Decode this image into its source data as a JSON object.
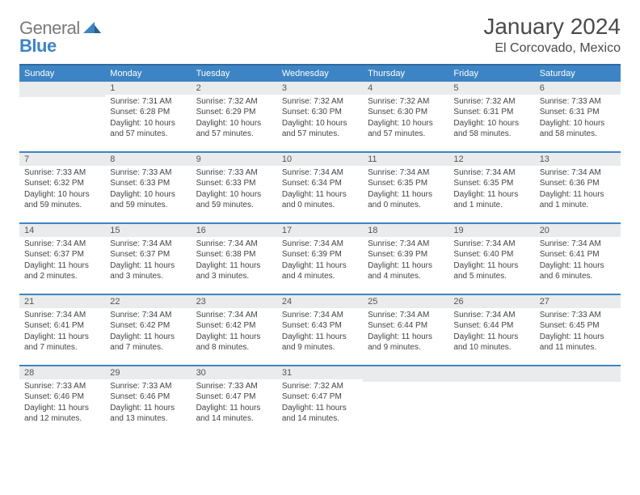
{
  "brand": {
    "a": "General",
    "b": "Blue"
  },
  "title": "January 2024",
  "subtitle": "El Corcovado, Mexico",
  "colors": {
    "headerBg": "#3d84c4",
    "headerRule": "#2f6aa0",
    "dayBg": "#e9ebec"
  },
  "weekdays": [
    "Sunday",
    "Monday",
    "Tuesday",
    "Wednesday",
    "Thursday",
    "Friday",
    "Saturday"
  ],
  "weeks": [
    [
      null,
      {
        "n": "1",
        "sr": "Sunrise: 7:31 AM",
        "ss": "Sunset: 6:28 PM",
        "dl": "Daylight: 10 hours and 57 minutes."
      },
      {
        "n": "2",
        "sr": "Sunrise: 7:32 AM",
        "ss": "Sunset: 6:29 PM",
        "dl": "Daylight: 10 hours and 57 minutes."
      },
      {
        "n": "3",
        "sr": "Sunrise: 7:32 AM",
        "ss": "Sunset: 6:30 PM",
        "dl": "Daylight: 10 hours and 57 minutes."
      },
      {
        "n": "4",
        "sr": "Sunrise: 7:32 AM",
        "ss": "Sunset: 6:30 PM",
        "dl": "Daylight: 10 hours and 57 minutes."
      },
      {
        "n": "5",
        "sr": "Sunrise: 7:32 AM",
        "ss": "Sunset: 6:31 PM",
        "dl": "Daylight: 10 hours and 58 minutes."
      },
      {
        "n": "6",
        "sr": "Sunrise: 7:33 AM",
        "ss": "Sunset: 6:31 PM",
        "dl": "Daylight: 10 hours and 58 minutes."
      }
    ],
    [
      {
        "n": "7",
        "sr": "Sunrise: 7:33 AM",
        "ss": "Sunset: 6:32 PM",
        "dl": "Daylight: 10 hours and 59 minutes."
      },
      {
        "n": "8",
        "sr": "Sunrise: 7:33 AM",
        "ss": "Sunset: 6:33 PM",
        "dl": "Daylight: 10 hours and 59 minutes."
      },
      {
        "n": "9",
        "sr": "Sunrise: 7:33 AM",
        "ss": "Sunset: 6:33 PM",
        "dl": "Daylight: 10 hours and 59 minutes."
      },
      {
        "n": "10",
        "sr": "Sunrise: 7:34 AM",
        "ss": "Sunset: 6:34 PM",
        "dl": "Daylight: 11 hours and 0 minutes."
      },
      {
        "n": "11",
        "sr": "Sunrise: 7:34 AM",
        "ss": "Sunset: 6:35 PM",
        "dl": "Daylight: 11 hours and 0 minutes."
      },
      {
        "n": "12",
        "sr": "Sunrise: 7:34 AM",
        "ss": "Sunset: 6:35 PM",
        "dl": "Daylight: 11 hours and 1 minute."
      },
      {
        "n": "13",
        "sr": "Sunrise: 7:34 AM",
        "ss": "Sunset: 6:36 PM",
        "dl": "Daylight: 11 hours and 1 minute."
      }
    ],
    [
      {
        "n": "14",
        "sr": "Sunrise: 7:34 AM",
        "ss": "Sunset: 6:37 PM",
        "dl": "Daylight: 11 hours and 2 minutes."
      },
      {
        "n": "15",
        "sr": "Sunrise: 7:34 AM",
        "ss": "Sunset: 6:37 PM",
        "dl": "Daylight: 11 hours and 3 minutes."
      },
      {
        "n": "16",
        "sr": "Sunrise: 7:34 AM",
        "ss": "Sunset: 6:38 PM",
        "dl": "Daylight: 11 hours and 3 minutes."
      },
      {
        "n": "17",
        "sr": "Sunrise: 7:34 AM",
        "ss": "Sunset: 6:39 PM",
        "dl": "Daylight: 11 hours and 4 minutes."
      },
      {
        "n": "18",
        "sr": "Sunrise: 7:34 AM",
        "ss": "Sunset: 6:39 PM",
        "dl": "Daylight: 11 hours and 4 minutes."
      },
      {
        "n": "19",
        "sr": "Sunrise: 7:34 AM",
        "ss": "Sunset: 6:40 PM",
        "dl": "Daylight: 11 hours and 5 minutes."
      },
      {
        "n": "20",
        "sr": "Sunrise: 7:34 AM",
        "ss": "Sunset: 6:41 PM",
        "dl": "Daylight: 11 hours and 6 minutes."
      }
    ],
    [
      {
        "n": "21",
        "sr": "Sunrise: 7:34 AM",
        "ss": "Sunset: 6:41 PM",
        "dl": "Daylight: 11 hours and 7 minutes."
      },
      {
        "n": "22",
        "sr": "Sunrise: 7:34 AM",
        "ss": "Sunset: 6:42 PM",
        "dl": "Daylight: 11 hours and 7 minutes."
      },
      {
        "n": "23",
        "sr": "Sunrise: 7:34 AM",
        "ss": "Sunset: 6:42 PM",
        "dl": "Daylight: 11 hours and 8 minutes."
      },
      {
        "n": "24",
        "sr": "Sunrise: 7:34 AM",
        "ss": "Sunset: 6:43 PM",
        "dl": "Daylight: 11 hours and 9 minutes."
      },
      {
        "n": "25",
        "sr": "Sunrise: 7:34 AM",
        "ss": "Sunset: 6:44 PM",
        "dl": "Daylight: 11 hours and 9 minutes."
      },
      {
        "n": "26",
        "sr": "Sunrise: 7:34 AM",
        "ss": "Sunset: 6:44 PM",
        "dl": "Daylight: 11 hours and 10 minutes."
      },
      {
        "n": "27",
        "sr": "Sunrise: 7:33 AM",
        "ss": "Sunset: 6:45 PM",
        "dl": "Daylight: 11 hours and 11 minutes."
      }
    ],
    [
      {
        "n": "28",
        "sr": "Sunrise: 7:33 AM",
        "ss": "Sunset: 6:46 PM",
        "dl": "Daylight: 11 hours and 12 minutes."
      },
      {
        "n": "29",
        "sr": "Sunrise: 7:33 AM",
        "ss": "Sunset: 6:46 PM",
        "dl": "Daylight: 11 hours and 13 minutes."
      },
      {
        "n": "30",
        "sr": "Sunrise: 7:33 AM",
        "ss": "Sunset: 6:47 PM",
        "dl": "Daylight: 11 hours and 14 minutes."
      },
      {
        "n": "31",
        "sr": "Sunrise: 7:32 AM",
        "ss": "Sunset: 6:47 PM",
        "dl": "Daylight: 11 hours and 14 minutes."
      },
      null,
      null,
      null
    ]
  ]
}
